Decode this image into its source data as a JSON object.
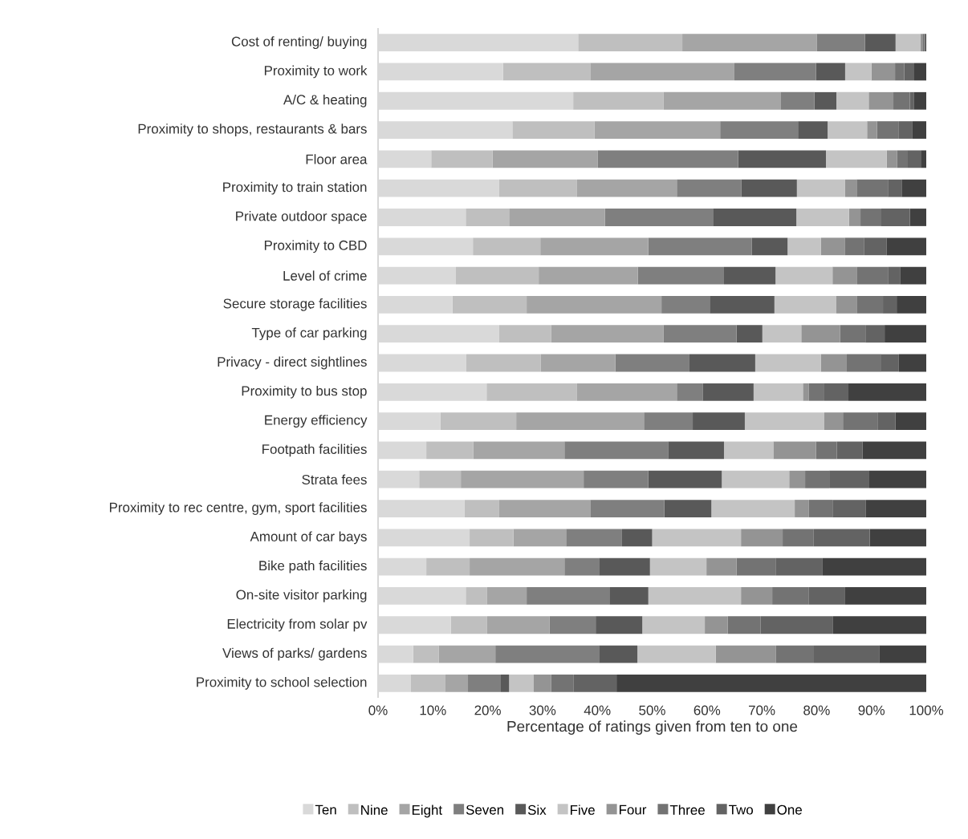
{
  "chart_data": {
    "type": "bar",
    "orientation": "horizontal",
    "stacked": true,
    "legend": "bottom",
    "xlabel": "Percentage of ratings given from ten to one",
    "xlim": [
      0,
      100
    ],
    "xticks": [
      {
        "value": 0,
        "label": "0%"
      },
      {
        "value": 10,
        "label": "10%"
      },
      {
        "value": 20,
        "label": "20%"
      },
      {
        "value": 30,
        "label": "30%"
      },
      {
        "value": 40,
        "label": "40%"
      },
      {
        "value": 50,
        "label": "50%"
      },
      {
        "value": 60,
        "label": "60%"
      },
      {
        "value": 70,
        "label": "70%"
      },
      {
        "value": 80,
        "label": "80%"
      },
      {
        "value": 90,
        "label": "90%"
      },
      {
        "value": 100,
        "label": "100%"
      }
    ],
    "categories": [
      "Cost of renting/ buying",
      "Proximity to work",
      "A/C & heating",
      "Proximity to shops, restaurants & bars",
      "Floor area",
      "Proximity to train station",
      "Private outdoor space",
      "Proximity to CBD",
      "Level of crime",
      "Secure storage facilities",
      "Type of car parking",
      "Privacy - direct sightlines",
      "Proximity to bus stop",
      "Energy efficiency",
      "Footpath facilities",
      "Strata fees",
      "Proximity to rec centre, gym, sport facilities",
      "Amount of car bays",
      "Bike path facilities",
      "On-site visitor parking",
      "Electricity from solar pv",
      "Views of parks/ gardens",
      "Proximity to school selection"
    ],
    "series": [
      {
        "name": "Ten",
        "color": "#d9d9d9",
        "values": [
          36.5,
          22.8,
          35.6,
          24.5,
          9.7,
          22.1,
          16,
          17.3,
          14.2,
          13.6,
          22.1,
          16.1,
          19.8,
          11.4,
          8.8,
          7.5,
          15.8,
          16.7,
          8.8,
          16,
          13.3,
          6.4,
          6
        ]
      },
      {
        "name": "Nine",
        "color": "#bfbfbf",
        "values": [
          19,
          15.9,
          16.5,
          15,
          11.2,
          14.2,
          7.9,
          12.3,
          15.1,
          13.5,
          9.5,
          13.6,
          16.5,
          13.8,
          8.6,
          7.6,
          6.3,
          8,
          7.9,
          3.9,
          6.6,
          4.7,
          6.2
        ]
      },
      {
        "name": "Eight",
        "color": "#a5a5a5",
        "values": [
          24.5,
          26.3,
          21.3,
          22.9,
          19.2,
          18.2,
          17.5,
          19.7,
          18.1,
          24.6,
          20.5,
          13.6,
          18.2,
          23.3,
          16.6,
          22.4,
          16.6,
          9.6,
          17.3,
          7.2,
          11.4,
          10.3,
          4.2
        ]
      },
      {
        "name": "Seven",
        "color": "#7f7f7f",
        "values": [
          8.8,
          14.9,
          6.2,
          14.2,
          25.6,
          11.8,
          19.8,
          18.9,
          15.7,
          8.8,
          13.3,
          13.5,
          4.7,
          8.9,
          18.9,
          11.8,
          13.5,
          10.2,
          6.3,
          15.1,
          8.4,
          18.9,
          6
        ]
      },
      {
        "name": "Six",
        "color": "#595959",
        "values": [
          5.6,
          5.3,
          4,
          5.4,
          16,
          10.1,
          15.1,
          6.5,
          9.4,
          11.8,
          4.7,
          12,
          9.3,
          9.5,
          10.2,
          13.4,
          8.6,
          5.5,
          9.3,
          7.1,
          8.5,
          7,
          1.5
        ]
      },
      {
        "name": "Five",
        "color": "#c4c4c4",
        "values": [
          4.5,
          4.8,
          5.9,
          7.2,
          11.1,
          8.8,
          9.6,
          6.1,
          10.4,
          11.3,
          7.1,
          12,
          9,
          14.5,
          9,
          12.3,
          15.2,
          16.2,
          10.3,
          16.9,
          11.4,
          14.3,
          4.5
        ]
      },
      {
        "name": "Four",
        "color": "#949494",
        "values": [
          0.4,
          4.3,
          4.5,
          1.8,
          1.9,
          2.1,
          2.1,
          4.4,
          4.5,
          3.8,
          7.1,
          4.7,
          1.1,
          3.4,
          7.8,
          2.9,
          2.6,
          7.6,
          5.5,
          5.7,
          4.2,
          11,
          3.2
        ]
      },
      {
        "name": "Three",
        "color": "#737373",
        "values": [
          0.3,
          1.7,
          3,
          4,
          1.8,
          5.7,
          3.8,
          3.5,
          5.7,
          4.7,
          4.6,
          6.3,
          2.8,
          6.3,
          3.8,
          4.4,
          4.3,
          5.6,
          7.2,
          6.7,
          6,
          6.9,
          4.1
        ]
      },
      {
        "name": "Two",
        "color": "#636363",
        "values": [
          0.2,
          1.8,
          0.7,
          2.5,
          2.5,
          2.5,
          5.2,
          4.1,
          2.2,
          2.5,
          3.5,
          3.2,
          4.4,
          3.3,
          4.7,
          7.3,
          6.1,
          10.3,
          8.5,
          6.5,
          13.2,
          11.9,
          7.8
        ]
      },
      {
        "name": "One",
        "color": "#404040",
        "values": [
          0.2,
          2.2,
          2.3,
          2.5,
          1,
          4.5,
          3,
          7.2,
          4.7,
          5.4,
          7.6,
          5,
          14.2,
          5.6,
          11.6,
          10.4,
          11,
          10.3,
          18.9,
          14.9,
          17,
          8.6,
          56.5
        ]
      }
    ]
  }
}
